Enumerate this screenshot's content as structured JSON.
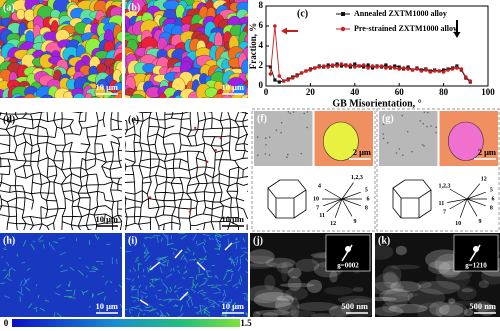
{
  "panels": [
    {
      "label": "(a)",
      "scale": "10 μm"
    },
    {
      "label": "(b)",
      "scale": "10 μm"
    },
    {
      "label": "(d)",
      "scale": "10 μm"
    },
    {
      "label": "(e)",
      "scale": "10 μm"
    },
    {
      "label": "(f)",
      "scale": "2 μm",
      "diagram": [
        "1,2,3",
        "4",
        "10",
        "7",
        "11",
        "12",
        "5",
        "6",
        "8",
        "9"
      ]
    },
    {
      "label": "(g)",
      "scale": "2 μm",
      "diagram": [
        "1,2,3",
        "12",
        "5",
        "6",
        "8",
        "9",
        "10",
        "7",
        "11"
      ]
    },
    {
      "label": "(h)",
      "scale": "10 μm"
    },
    {
      "label": "(i)",
      "scale": "10 μm"
    },
    {
      "label": "(j)",
      "scale": "500 nm",
      "inset": "g=0002"
    },
    {
      "label": "(k)",
      "scale": "500 nm",
      "inset": "g=1210"
    }
  ],
  "colorbar": {
    "min": 0,
    "max": 1.5
  },
  "chart_data": {
    "type": "line",
    "panel_label": "(c)",
    "xlabel": "GB Misorientation, °",
    "ylabel": "Fraction, %",
    "x": [
      2,
      4,
      6,
      8,
      10,
      12,
      14,
      16,
      18,
      20,
      22,
      24,
      26,
      28,
      30,
      32,
      34,
      36,
      38,
      40,
      42,
      44,
      46,
      48,
      50,
      52,
      54,
      56,
      58,
      60,
      62,
      64,
      66,
      68,
      70,
      72,
      74,
      76,
      78,
      80,
      82,
      84,
      86,
      88,
      90,
      92
    ],
    "series": [
      {
        "name": "Annealed ZXTM1000 alloy",
        "color": "#111111",
        "marker": "square",
        "values": [
          1.9,
          0.6,
          0.4,
          0.5,
          0.7,
          0.9,
          1.1,
          1.3,
          1.5,
          1.7,
          1.8,
          2.0,
          1.9,
          2.1,
          2.0,
          2.2,
          2.0,
          2.1,
          1.9,
          2.2,
          2.0,
          1.9,
          2.1,
          1.8,
          2.0,
          1.9,
          2.1,
          1.8,
          2.0,
          1.9,
          1.7,
          1.9,
          1.6,
          1.8,
          1.6,
          1.7,
          1.5,
          1.6,
          1.5,
          1.6,
          1.7,
          1.8,
          2.0,
          1.6,
          0.8,
          0.4
        ]
      },
      {
        "name": "Pre-strained ZXTM1000 alloy",
        "color": "#c81e1e",
        "marker": "circle",
        "values": [
          1.2,
          6.0,
          1.0,
          0.5,
          0.6,
          0.8,
          1.0,
          1.3,
          1.5,
          1.6,
          1.8,
          1.9,
          2.0,
          1.9,
          2.1,
          2.0,
          2.2,
          2.0,
          2.1,
          1.9,
          2.0,
          2.1,
          1.8,
          2.0,
          1.9,
          2.0,
          1.8,
          1.9,
          1.8,
          1.7,
          1.8,
          1.7,
          1.6,
          1.7,
          1.5,
          1.6,
          1.4,
          1.5,
          1.5,
          1.4,
          1.6,
          1.7,
          1.8,
          1.7,
          0.9,
          0.5
        ]
      }
    ],
    "xlim": [
      0,
      100
    ],
    "xticks": [
      0,
      20,
      40,
      60,
      80,
      100
    ],
    "ylim": [
      0,
      8
    ],
    "yticks": [
      0,
      2,
      4,
      6,
      8
    ],
    "legend": "upper right"
  }
}
